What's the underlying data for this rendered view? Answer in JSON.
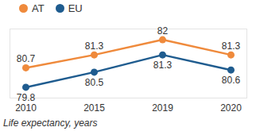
{
  "chart_data": {
    "type": "line",
    "caption": "Life expectancy, years",
    "categories": [
      "2010",
      "2015",
      "2019",
      "2020"
    ],
    "series": [
      {
        "name": "AT",
        "color": "#ef8a3c",
        "values": [
          80.7,
          81.3,
          82,
          81.3
        ]
      },
      {
        "name": "EU",
        "color": "#1f5c8f",
        "values": [
          79.8,
          80.5,
          81.3,
          80.6
        ]
      }
    ],
    "ylim": [
      79.3,
      82.5
    ],
    "marker": "circle",
    "data_labels": true,
    "tick_labels": "x",
    "legend": "top-left"
  }
}
